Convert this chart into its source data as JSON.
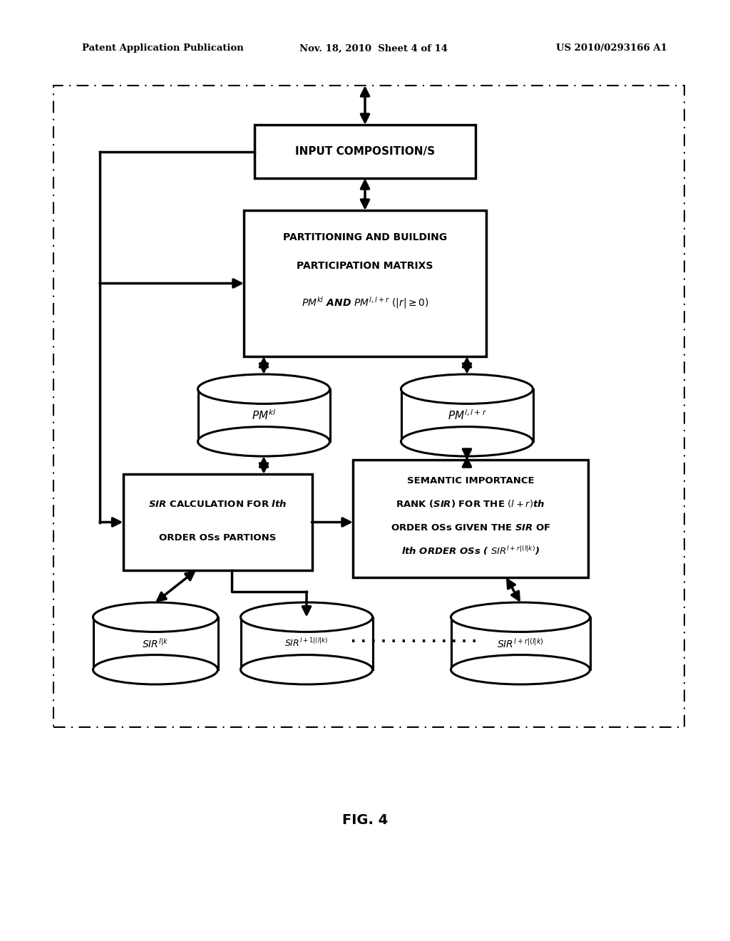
{
  "bg_color": "#ffffff",
  "header_text1": "Patent Application Publication",
  "header_text2": "Nov. 18, 2010  Sheet 4 of 14",
  "header_text3": "US 2010/0293166 A1",
  "fig_label": "FIG. 4"
}
